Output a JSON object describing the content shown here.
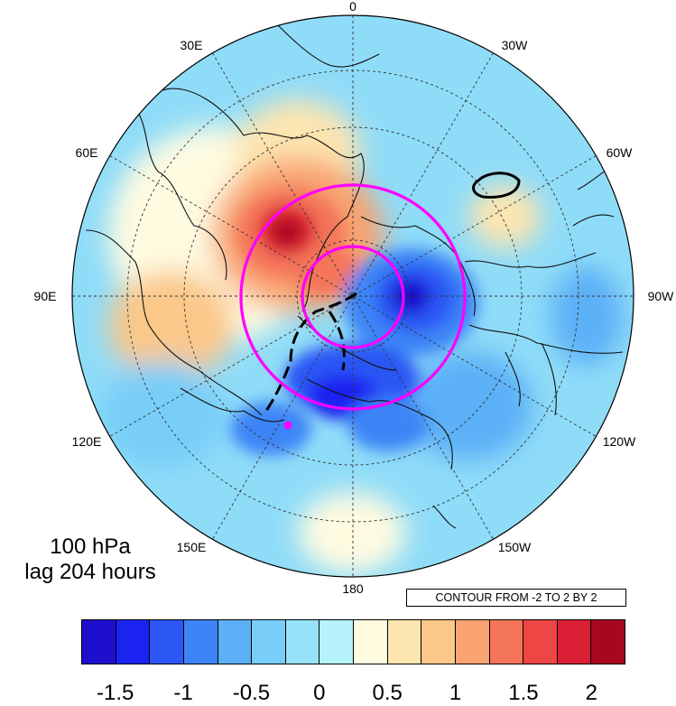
{
  "map": {
    "projection": "north-polar-stereographic",
    "longitude_labels": {
      "top": "0",
      "ne_30": "30W",
      "ne_60": "60W",
      "right": "90W",
      "se_120": "120W",
      "se_150": "150W",
      "bottom": "180",
      "sw_150": "150E",
      "sw_120": "120E",
      "left": "90E",
      "nw_60": "60E",
      "nw_30": "30E"
    },
    "circle_color": "#ff00ff",
    "marker_color": "#ff00ff"
  },
  "title": {
    "level": "100 hPa",
    "lag": "lag 204 hours"
  },
  "contour_info": "CONTOUR FROM -2 TO 2 BY 2",
  "colorbar": {
    "colors": [
      "#1e0fcf",
      "#1a23f0",
      "#2c57f4",
      "#3d85f6",
      "#5bb0f7",
      "#78cef8",
      "#97e3fa",
      "#b6f3fb",
      "#fefbe1",
      "#fde5b0",
      "#fbc88a",
      "#f8a371",
      "#f4755a",
      "#ee4545",
      "#da1e33",
      "#a80722"
    ],
    "labels": [
      "-1.5",
      "-1",
      "-0.5",
      "0",
      "0.5",
      "1",
      "1.5",
      "2"
    ]
  }
}
